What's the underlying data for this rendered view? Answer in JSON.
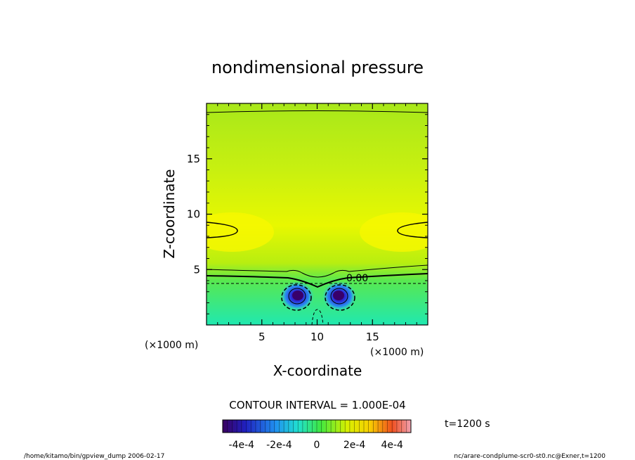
{
  "chart_data": {
    "type": "heatmap",
    "title": "nondimensional pressure",
    "xlabel": "X-coordinate",
    "ylabel": "Z-coordinate",
    "x_unit": "(×1000 m)",
    "y_unit": "(×1000 m)",
    "xlim": [
      0,
      20
    ],
    "ylim": [
      0,
      20
    ],
    "x_ticks": [
      5,
      10,
      15
    ],
    "y_ticks": [
      5,
      10,
      15
    ],
    "contour_label": "0.00",
    "contour_interval_text": "CONTOUR INTERVAL = 1.000E-04",
    "time_text": "t=1200 s",
    "colorbar": {
      "range": [
        -0.0005,
        0.0005
      ],
      "tick_labels": [
        "-4e-4",
        "-2e-4",
        "0",
        "2e-4",
        "4e-4"
      ]
    },
    "footer_left": "/home/kitamo/bin/gpview_dump  2006-02-17",
    "footer_right": "nc/arare-condplume-scr0-st0.nc@Exner,t=1200"
  }
}
